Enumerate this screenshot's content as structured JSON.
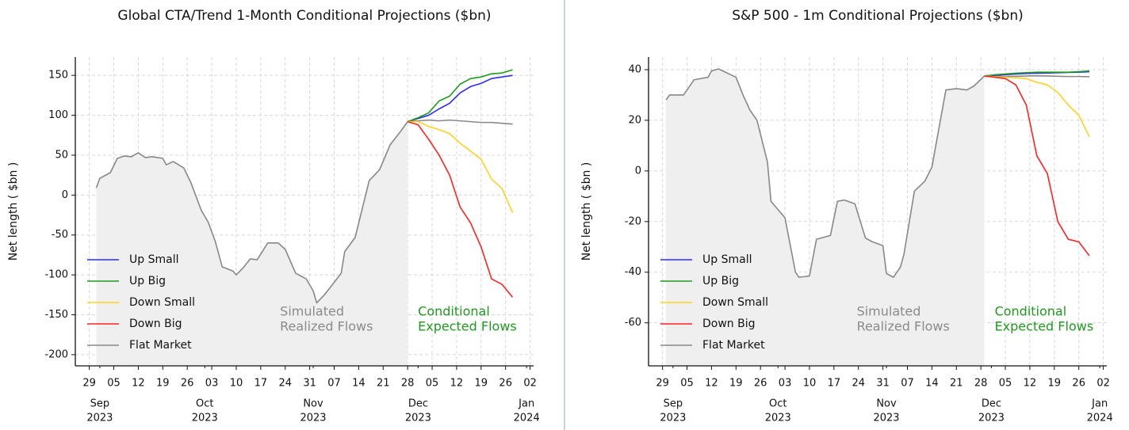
{
  "chart_data": [
    {
      "type": "line",
      "title": "Global CTA/Trend 1-Month Conditional Projections ($bn)",
      "ylabel": "Net length ( $bn )",
      "x": [
        "2023-08-31",
        "2023-09-01",
        "2023-09-04",
        "2023-09-06",
        "2023-09-08",
        "2023-09-10",
        "2023-09-12",
        "2023-09-14",
        "2023-09-16",
        "2023-09-19",
        "2023-09-20",
        "2023-09-22",
        "2023-09-25",
        "2023-09-27",
        "2023-09-30",
        "2023-10-02",
        "2023-10-04",
        "2023-10-06",
        "2023-10-09",
        "2023-10-10",
        "2023-10-12",
        "2023-10-14",
        "2023-10-16",
        "2023-10-19",
        "2023-10-22",
        "2023-10-24",
        "2023-10-27",
        "2023-10-30",
        "2023-11-01",
        "2023-11-02",
        "2023-11-04",
        "2023-11-06",
        "2023-11-09",
        "2023-11-10",
        "2023-11-13",
        "2023-11-17",
        "2023-11-20",
        "2023-11-23",
        "2023-11-26",
        "2023-11-28",
        "2023-12-01",
        "2023-12-04",
        "2023-12-07",
        "2023-12-10",
        "2023-12-13",
        "2023-12-16",
        "2023-12-19",
        "2023-12-22",
        "2023-12-25",
        "2023-12-28"
      ],
      "series": [
        {
          "name": "Up Small",
          "color": "#2b2bff",
          "values": [
            null,
            null,
            null,
            null,
            null,
            null,
            null,
            null,
            null,
            null,
            null,
            null,
            null,
            null,
            null,
            null,
            null,
            null,
            null,
            null,
            null,
            null,
            null,
            null,
            null,
            null,
            null,
            null,
            null,
            null,
            null,
            null,
            null,
            null,
            null,
            null,
            null,
            null,
            null,
            92,
            96,
            100,
            108,
            115,
            128,
            136,
            140,
            146,
            148,
            150
          ]
        },
        {
          "name": "Up Big",
          "color": "#1f9a1f",
          "values": [
            null,
            null,
            null,
            null,
            null,
            null,
            null,
            null,
            null,
            null,
            null,
            null,
            null,
            null,
            null,
            null,
            null,
            null,
            null,
            null,
            null,
            null,
            null,
            null,
            null,
            null,
            null,
            null,
            null,
            null,
            null,
            null,
            null,
            null,
            null,
            null,
            null,
            null,
            null,
            92,
            97,
            103,
            118,
            124,
            139,
            146,
            148,
            152,
            153,
            157
          ]
        },
        {
          "name": "Down Small",
          "color": "#ffd21f",
          "values": [
            null,
            null,
            null,
            null,
            null,
            null,
            null,
            null,
            null,
            null,
            null,
            null,
            null,
            null,
            null,
            null,
            null,
            null,
            null,
            null,
            null,
            null,
            null,
            null,
            null,
            null,
            null,
            null,
            null,
            null,
            null,
            null,
            null,
            null,
            null,
            null,
            null,
            null,
            null,
            92,
            92,
            86,
            82,
            77,
            65,
            55,
            45,
            20,
            8,
            -22
          ]
        },
        {
          "name": "Down Big",
          "color": "#ff2222",
          "values": [
            null,
            null,
            null,
            null,
            null,
            null,
            null,
            null,
            null,
            null,
            null,
            null,
            null,
            null,
            null,
            null,
            null,
            null,
            null,
            null,
            null,
            null,
            null,
            null,
            null,
            null,
            null,
            null,
            null,
            null,
            null,
            null,
            null,
            null,
            null,
            null,
            null,
            null,
            null,
            92,
            88,
            70,
            50,
            25,
            -15,
            -35,
            -65,
            -105,
            -112,
            -128
          ]
        },
        {
          "name": "Flat Market",
          "color": "#888888",
          "values": [
            9,
            21,
            28,
            46,
            49,
            48,
            53,
            47,
            48,
            46,
            38,
            42,
            34,
            16,
            -19,
            -34,
            -58,
            -90,
            -95,
            -100,
            -91,
            -80,
            -81,
            -60,
            -60,
            -68,
            -98,
            -105,
            -120,
            -135,
            -126,
            -115,
            -98,
            -71,
            -53,
            18,
            32,
            63,
            80,
            92,
            93,
            94,
            93,
            94,
            93,
            92,
            91,
            91,
            90,
            89
          ]
        }
      ],
      "xlim": [
        "2023-08-25",
        "2024-01-03"
      ],
      "xticks": [
        {
          "value": "2023-08-29",
          "label": "29"
        },
        {
          "value": "2023-09-05",
          "label": "05"
        },
        {
          "value": "2023-09-12",
          "label": "12"
        },
        {
          "value": "2023-09-19",
          "label": "19"
        },
        {
          "value": "2023-09-26",
          "label": "26"
        },
        {
          "value": "2023-10-03",
          "label": "03"
        },
        {
          "value": "2023-10-10",
          "label": "10"
        },
        {
          "value": "2023-10-17",
          "label": "17"
        },
        {
          "value": "2023-10-24",
          "label": "24"
        },
        {
          "value": "2023-10-31",
          "label": "31"
        },
        {
          "value": "2023-11-07",
          "label": "07"
        },
        {
          "value": "2023-11-14",
          "label": "14"
        },
        {
          "value": "2023-11-21",
          "label": "21"
        },
        {
          "value": "2023-11-28",
          "label": "28"
        },
        {
          "value": "2023-12-05",
          "label": "05"
        },
        {
          "value": "2023-12-12",
          "label": "12"
        },
        {
          "value": "2023-12-19",
          "label": "19"
        },
        {
          "value": "2023-12-26",
          "label": "26"
        },
        {
          "value": "2024-01-02",
          "label": "02"
        }
      ],
      "month_ticks": [
        {
          "value": "2023-09-01",
          "month": "Sep",
          "year": "2023"
        },
        {
          "value": "2023-10-01",
          "month": "Oct",
          "year": "2023"
        },
        {
          "value": "2023-11-01",
          "month": "Nov",
          "year": "2023"
        },
        {
          "value": "2023-12-01",
          "month": "Dec",
          "year": "2023"
        },
        {
          "value": "2024-01-01",
          "month": "Jan",
          "year": "2024"
        }
      ],
      "ylim": [
        -214,
        173
      ],
      "yticks": [
        -200,
        -150,
        -100,
        -50,
        0,
        50,
        100,
        150
      ],
      "grid": true,
      "legend": "lower left",
      "annotations": [
        {
          "lines": [
            "Simulated",
            "Realized Flows"
          ],
          "color": "#8a8a8a"
        },
        {
          "lines": [
            "Conditional",
            "Expected Flows"
          ],
          "color": "#1f9a1f"
        }
      ]
    },
    {
      "type": "line",
      "title": "S&P 500 - 1m Conditional Projections ($bn)",
      "ylabel": "Net length ( $bn )",
      "x": [
        "2023-08-30",
        "2023-08-31",
        "2023-09-04",
        "2023-09-07",
        "2023-09-11",
        "2023-09-12",
        "2023-09-14",
        "2023-09-16",
        "2023-09-19",
        "2023-09-21",
        "2023-09-23",
        "2023-09-25",
        "2023-09-28",
        "2023-09-29",
        "2023-10-03",
        "2023-10-06",
        "2023-10-07",
        "2023-10-10",
        "2023-10-12",
        "2023-10-16",
        "2023-10-18",
        "2023-10-20",
        "2023-10-23",
        "2023-10-26",
        "2023-10-28",
        "2023-10-31",
        "2023-11-01",
        "2023-11-03",
        "2023-11-05",
        "2023-11-06",
        "2023-11-09",
        "2023-11-12",
        "2023-11-14",
        "2023-11-18",
        "2023-11-21",
        "2023-11-24",
        "2023-11-26",
        "2023-11-29",
        "2023-12-02",
        "2023-12-05",
        "2023-12-08",
        "2023-12-11",
        "2023-12-14",
        "2023-12-17",
        "2023-12-20",
        "2023-12-23",
        "2023-12-26",
        "2023-12-29"
      ],
      "series": [
        {
          "name": "Up Small",
          "color": "#2b2bff",
          "values": [
            null,
            null,
            null,
            null,
            null,
            null,
            null,
            null,
            null,
            null,
            null,
            null,
            null,
            null,
            null,
            null,
            null,
            null,
            null,
            null,
            null,
            null,
            null,
            null,
            null,
            null,
            null,
            null,
            null,
            null,
            null,
            null,
            null,
            null,
            null,
            null,
            null,
            37.5,
            37.8,
            38,
            38.3,
            38.5,
            38.6,
            38.7,
            38.8,
            38.9,
            39,
            39.2
          ]
        },
        {
          "name": "Up Big",
          "color": "#1f9a1f",
          "values": [
            null,
            null,
            null,
            null,
            null,
            null,
            null,
            null,
            null,
            null,
            null,
            null,
            null,
            null,
            null,
            null,
            null,
            null,
            null,
            null,
            null,
            null,
            null,
            null,
            null,
            null,
            null,
            null,
            null,
            null,
            null,
            null,
            null,
            null,
            null,
            null,
            null,
            37.5,
            38,
            38.3,
            38.6,
            38.8,
            39,
            39,
            39,
            39,
            39.2,
            39.5
          ]
        },
        {
          "name": "Down Small",
          "color": "#ffd21f",
          "values": [
            null,
            null,
            null,
            null,
            null,
            null,
            null,
            null,
            null,
            null,
            null,
            null,
            null,
            null,
            null,
            null,
            null,
            null,
            null,
            null,
            null,
            null,
            null,
            null,
            null,
            null,
            null,
            null,
            null,
            null,
            null,
            null,
            null,
            null,
            null,
            null,
            null,
            37.5,
            37.2,
            37,
            36.8,
            36.5,
            35,
            34,
            31,
            26,
            22,
            13.5
          ]
        },
        {
          "name": "Down Big",
          "color": "#ff2222",
          "values": [
            null,
            null,
            null,
            null,
            null,
            null,
            null,
            null,
            null,
            null,
            null,
            null,
            null,
            null,
            null,
            null,
            null,
            null,
            null,
            null,
            null,
            null,
            null,
            null,
            null,
            null,
            null,
            null,
            null,
            null,
            null,
            null,
            null,
            null,
            null,
            null,
            null,
            37.5,
            37,
            36.5,
            34,
            26,
            6,
            -1,
            -20,
            -27,
            -28,
            -33.5
          ]
        },
        {
          "name": "Flat Market",
          "color": "#888888",
          "values": [
            28,
            30,
            30,
            36,
            37,
            39.5,
            40.3,
            39,
            37,
            30,
            24,
            20,
            3.5,
            -12,
            -18.5,
            -40,
            -42,
            -41.5,
            -27,
            -25.5,
            -12,
            -11.5,
            -13,
            -26.5,
            -28,
            -29.5,
            -40.5,
            -42,
            -38,
            -33,
            -8,
            -4,
            1.5,
            32,
            32.5,
            32,
            33.5,
            37.5,
            37.5,
            37.3,
            37.4,
            37.5,
            37.6,
            37.5,
            37.4,
            37.3,
            37.3,
            37.2
          ]
        }
      ],
      "xlim": [
        "2023-08-25",
        "2024-01-03"
      ],
      "xticks": [
        {
          "value": "2023-08-29",
          "label": "29"
        },
        {
          "value": "2023-09-05",
          "label": "05"
        },
        {
          "value": "2023-09-12",
          "label": "12"
        },
        {
          "value": "2023-09-19",
          "label": "19"
        },
        {
          "value": "2023-09-26",
          "label": "26"
        },
        {
          "value": "2023-10-03",
          "label": "03"
        },
        {
          "value": "2023-10-10",
          "label": "10"
        },
        {
          "value": "2023-10-17",
          "label": "17"
        },
        {
          "value": "2023-10-24",
          "label": "24"
        },
        {
          "value": "2023-10-31",
          "label": "31"
        },
        {
          "value": "2023-11-07",
          "label": "07"
        },
        {
          "value": "2023-11-14",
          "label": "14"
        },
        {
          "value": "2023-11-21",
          "label": "21"
        },
        {
          "value": "2023-11-28",
          "label": "28"
        },
        {
          "value": "2023-12-05",
          "label": "05"
        },
        {
          "value": "2023-12-12",
          "label": "12"
        },
        {
          "value": "2023-12-19",
          "label": "19"
        },
        {
          "value": "2023-12-26",
          "label": "26"
        },
        {
          "value": "2024-01-02",
          "label": "02"
        }
      ],
      "month_ticks": [
        {
          "value": "2023-09-01",
          "month": "Sep",
          "year": "2023"
        },
        {
          "value": "2023-10-01",
          "month": "Oct",
          "year": "2023"
        },
        {
          "value": "2023-11-01",
          "month": "Nov",
          "year": "2023"
        },
        {
          "value": "2023-12-01",
          "month": "Dec",
          "year": "2023"
        },
        {
          "value": "2024-01-01",
          "month": "Jan",
          "year": "2024"
        }
      ],
      "ylim": [
        -77,
        45
      ],
      "yticks": [
        -60,
        -40,
        -20,
        0,
        20,
        40
      ],
      "grid": true,
      "legend": "lower left",
      "annotations": [
        {
          "lines": [
            "Simulated",
            "Realized Flows"
          ],
          "color": "#8a8a8a"
        },
        {
          "lines": [
            "Conditional",
            "Expected Flows"
          ],
          "color": "#1f9a1f"
        }
      ]
    }
  ]
}
